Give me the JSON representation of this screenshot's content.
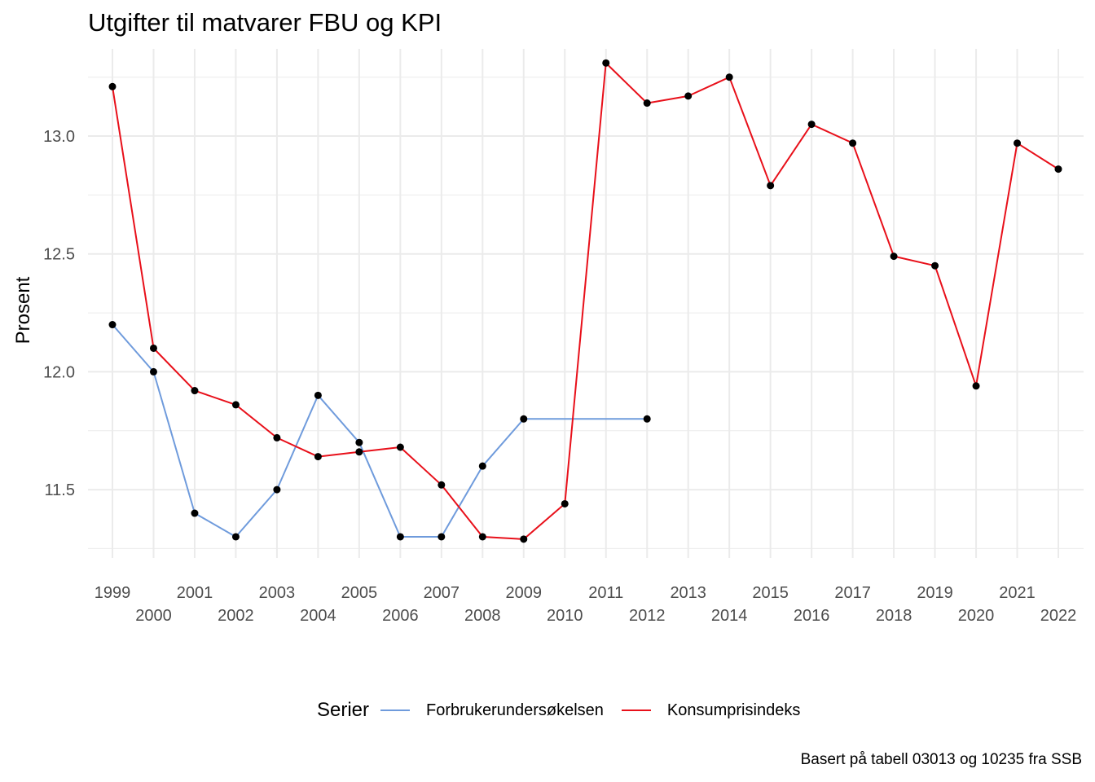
{
  "chart_data": {
    "type": "line",
    "title": "Utgifter til matvarer FBU og KPI",
    "xlabel": "",
    "ylabel": "Prosent",
    "x": [
      1999,
      2000,
      2001,
      2002,
      2003,
      2004,
      2005,
      2006,
      2007,
      2008,
      2009,
      2010,
      2011,
      2012,
      2013,
      2014,
      2015,
      2016,
      2017,
      2018,
      2019,
      2020,
      2021,
      2022
    ],
    "x_tick_labels": [
      "1999",
      "2000",
      "2001",
      "2002",
      "2003",
      "2004",
      "2005",
      "2006",
      "2007",
      "2008",
      "2009",
      "2010",
      "2011",
      "2012",
      "2013",
      "2014",
      "2015",
      "2016",
      "2017",
      "2018",
      "2019",
      "2020",
      "2021",
      "2022"
    ],
    "yticks": [
      11.5,
      12.0,
      12.5,
      13.0
    ],
    "y_tick_labels": [
      "11.5",
      "12.0",
      "12.5",
      "13.0"
    ],
    "ylim": [
      11.21,
      13.37
    ],
    "grid": true,
    "legend_title": "Serier",
    "legend_position": "bottom",
    "series": [
      {
        "name": "Forbrukerundersøkelsen",
        "color": "#6f9bdc",
        "x": [
          1999,
          2000,
          2001,
          2002,
          2003,
          2004,
          2005,
          2006,
          2007,
          2008,
          2009,
          2012
        ],
        "values": [
          12.2,
          12.0,
          11.4,
          11.3,
          11.5,
          11.9,
          11.7,
          11.3,
          11.3,
          11.6,
          11.8,
          11.8
        ]
      },
      {
        "name": "Konsumprisindeks",
        "color": "#e8101a",
        "x": [
          1999,
          2000,
          2001,
          2002,
          2003,
          2004,
          2005,
          2006,
          2007,
          2008,
          2009,
          2010,
          2011,
          2012,
          2013,
          2014,
          2015,
          2016,
          2017,
          2018,
          2019,
          2020,
          2021,
          2022
        ],
        "values": [
          13.21,
          12.1,
          11.92,
          11.86,
          11.72,
          11.64,
          11.66,
          11.68,
          11.52,
          11.3,
          11.29,
          11.44,
          13.31,
          13.14,
          13.17,
          13.25,
          12.79,
          13.05,
          12.97,
          12.49,
          12.45,
          11.94,
          12.97,
          12.86
        ]
      }
    ],
    "point_color": "#000000",
    "caption": "Basert på tabell 03013 og 10235 fra SSB"
  }
}
